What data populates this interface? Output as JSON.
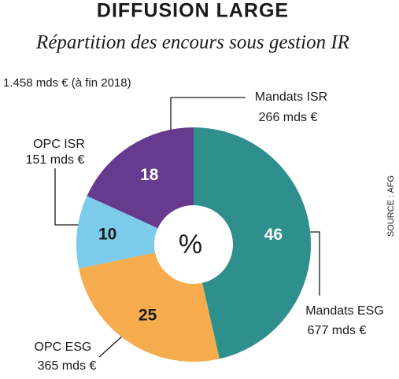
{
  "chart_data": {
    "type": "pie",
    "title": "DIFFUSION LARGE",
    "subtitle": "Répartition des encours sous gestion IR",
    "total_label": "1.458 mds € (à fin 2018)",
    "center_label": "%",
    "source": "SOURCE : AFG",
    "categories": [
      "Mandats ESG",
      "OPC ESG",
      "OPC ISR",
      "Mandats ISR"
    ],
    "values": [
      46,
      25,
      10,
      18
    ],
    "amount_labels": [
      "677 mds €",
      "365 mds €",
      "151 mds €",
      "266 mds €"
    ],
    "colors": [
      "#2f8f8c",
      "#f6ac4d",
      "#7dcbea",
      "#663a8e"
    ]
  }
}
